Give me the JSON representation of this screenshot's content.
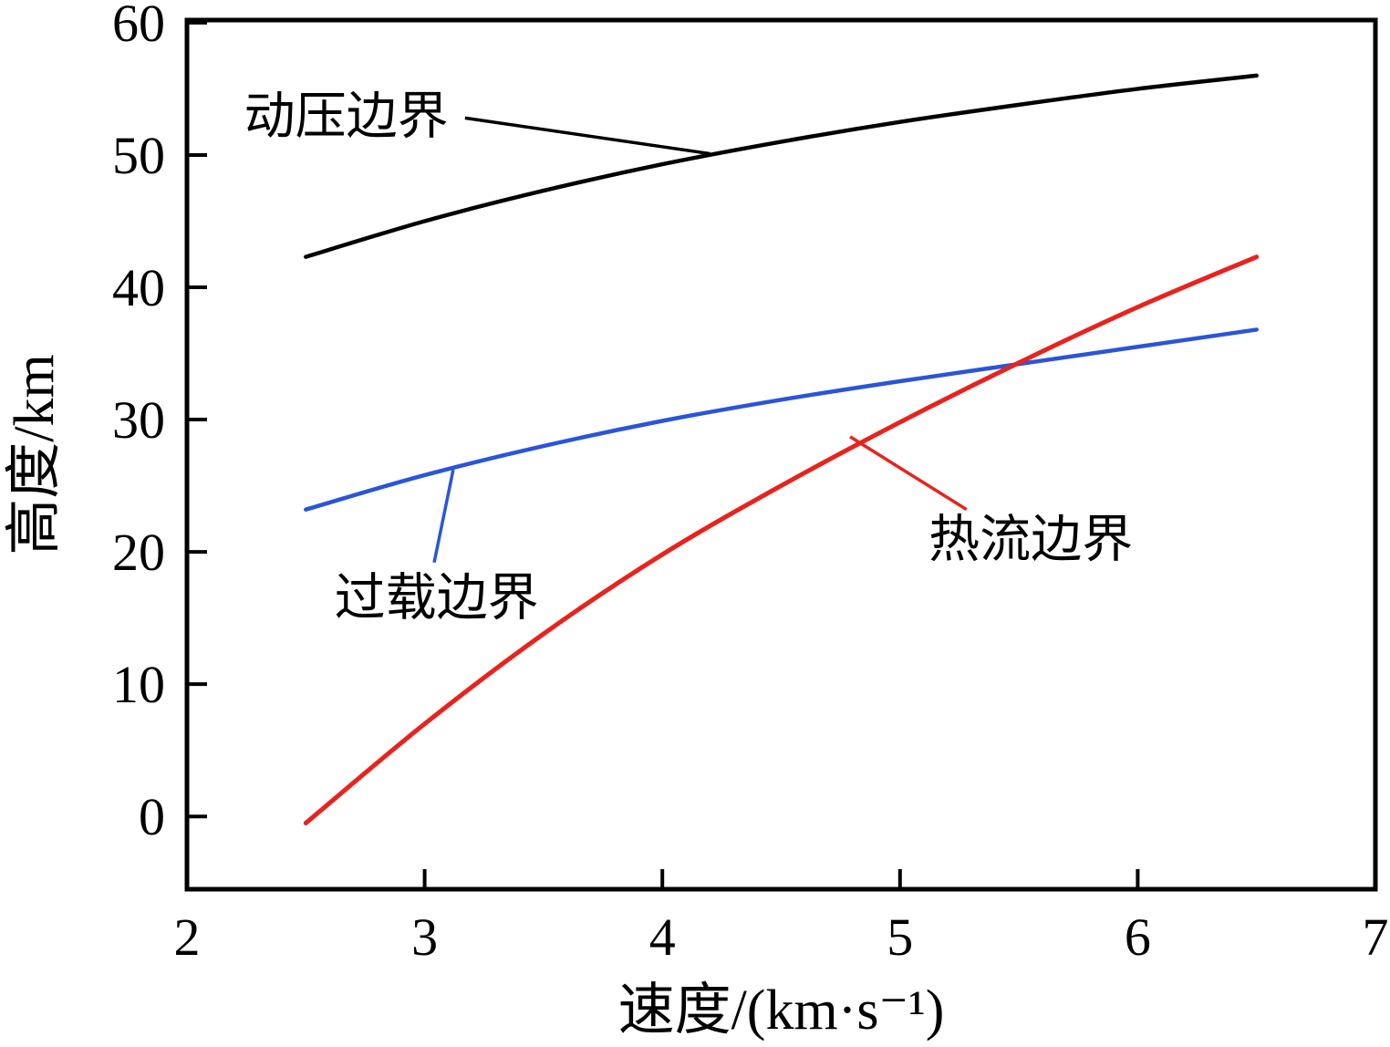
{
  "chart_data": {
    "type": "line",
    "title": "",
    "xlabel": "速度/(km·s⁻¹)",
    "ylabel": "高度/km",
    "xlim": [
      2,
      7
    ],
    "ylim": [
      -5.5,
      60.2
    ],
    "x_ticks": [
      2,
      3,
      4,
      5,
      6,
      7
    ],
    "y_ticks": [
      0,
      10,
      20,
      30,
      40,
      50,
      60
    ],
    "grid": false,
    "legend_position": "none",
    "x": [
      2.5,
      3.0,
      3.5,
      4.0,
      4.5,
      5.0,
      5.5,
      6.0,
      6.5
    ],
    "series": [
      {
        "name": "动压边界",
        "color": "#000000",
        "width": 4.5,
        "values": [
          42.3,
          45.0,
          47.3,
          49.3,
          51.0,
          52.5,
          53.8,
          55.0,
          56.0
        ]
      },
      {
        "name": "过载边界",
        "color": "#2a55d8",
        "width": 4.5,
        "values": [
          23.2,
          25.8,
          28.0,
          29.9,
          31.5,
          32.9,
          34.2,
          35.5,
          36.8
        ]
      },
      {
        "name": "热流边界",
        "color": "#e8231d",
        "width": 5,
        "values": [
          -0.5,
          7.0,
          13.8,
          19.8,
          25.0,
          29.8,
          34.3,
          38.5,
          42.3
        ]
      }
    ],
    "annotations": [
      {
        "text": "动压边界",
        "x": 2.67,
        "y": 53.0,
        "leader_color": "#000000",
        "leader": {
          "x1": 3.17,
          "y1": 52.8,
          "x2": 4.2,
          "y2": 50.1
        }
      },
      {
        "text": "过载边界",
        "x": 3.05,
        "y": 16.6,
        "leader_color": "#2a55d8",
        "leader": {
          "x1": 3.04,
          "y1": 19.2,
          "x2": 3.12,
          "y2": 26.2
        }
      },
      {
        "text": "热流边界",
        "x": 5.55,
        "y": 21.0,
        "leader_color": "#e8231d",
        "leader": {
          "x1": 5.28,
          "y1": 23.2,
          "x2": 4.79,
          "y2": 28.7
        }
      }
    ],
    "axis_color": "#000000",
    "axis_line_width": 5,
    "tick_length": 22,
    "tick_width": 4
  }
}
